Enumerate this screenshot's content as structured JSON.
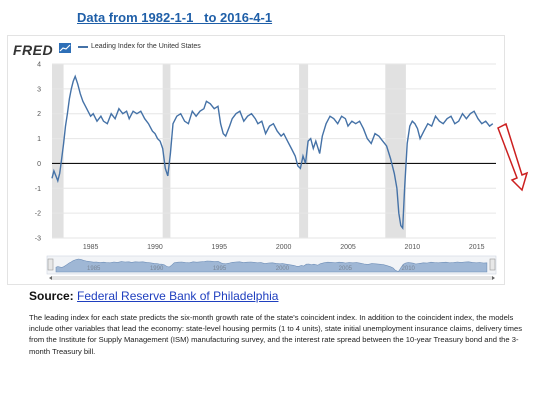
{
  "page_title": "Data from 1982-1-1   to 2016-4-1",
  "fred": {
    "logo_text": "FRED",
    "legend_label": "Leading Index for the United States",
    "series_color": "#4572a7",
    "recession_color": "#e1e1e1",
    "navigator_color": "#9fb7d5"
  },
  "source": {
    "label": "Source:",
    "link_text": "Federal Reserve Bank of Philadelphia"
  },
  "description": "The leading index for each state predicts the six-month growth rate of the state's coincident index. In addition to the coincident index, the models include other variables that lead the economy: state-level housing permits (1 to 4 units), state initial unemployment insurance claims, delivery times from the Institute for Supply Management (ISM) manufacturing survey, and the interest rate spread between the 10-year Treasury bond and the 3-month Treasury bill.",
  "arrow_color": "#cc2020",
  "chart_data": {
    "type": "line",
    "title": "Leading Index for the United States",
    "x_start": 1982.0,
    "x_end": 2016.25,
    "xlim": [
      1982.0,
      2016.5
    ],
    "ylim": [
      -3,
      4
    ],
    "yticks": [
      4,
      3,
      2,
      1,
      0,
      -1,
      -2,
      -3
    ],
    "xticks": [
      1985,
      1990,
      1995,
      2000,
      2005,
      2010,
      2015
    ],
    "navigator_ticks": [
      1985,
      1990,
      1995,
      2000,
      2005,
      2010
    ],
    "zero_line": true,
    "grid": true,
    "recessions": [
      [
        1982.0,
        1982.9
      ],
      [
        1990.6,
        1991.2
      ],
      [
        2001.2,
        2001.9
      ],
      [
        2007.9,
        2009.5
      ]
    ],
    "series": [
      {
        "x": [
          1982.0,
          1982.15,
          1982.3,
          1982.45,
          1982.6,
          1982.75,
          1982.9,
          1983.05,
          1983.2,
          1983.35,
          1983.5,
          1983.65,
          1983.8,
          1984.0,
          1984.2,
          1984.4,
          1984.6,
          1984.8,
          1985.0,
          1985.2,
          1985.5,
          1985.8,
          1986.0,
          1986.3,
          1986.6,
          1986.9,
          1987.2,
          1987.5,
          1987.8,
          1988.0,
          1988.3,
          1988.6,
          1988.9,
          1989.2,
          1989.5,
          1989.8,
          1990.0,
          1990.2,
          1990.4,
          1990.6,
          1990.8,
          1991.0,
          1991.2,
          1991.4,
          1991.7,
          1992.0,
          1992.3,
          1992.6,
          1992.9,
          1993.2,
          1993.5,
          1993.8,
          1994.0,
          1994.3,
          1994.6,
          1994.9,
          1995.1,
          1995.3,
          1995.5,
          1995.8,
          1996.0,
          1996.3,
          1996.6,
          1996.9,
          1997.2,
          1997.5,
          1997.8,
          1998.0,
          1998.3,
          1998.6,
          1998.9,
          1999.2,
          1999.5,
          1999.8,
          2000.0,
          2000.3,
          2000.6,
          2000.9,
          2001.1,
          2001.3,
          2001.5,
          2001.7,
          2001.9,
          2002.1,
          2002.3,
          2002.5,
          2002.8,
          2003.0,
          2003.3,
          2003.6,
          2003.9,
          2004.2,
          2004.5,
          2004.8,
          2005.0,
          2005.3,
          2005.6,
          2005.9,
          2006.2,
          2006.5,
          2006.8,
          2007.1,
          2007.4,
          2007.7,
          2008.0,
          2008.3,
          2008.6,
          2008.8,
          2008.95,
          2009.1,
          2009.25,
          2009.4,
          2009.6,
          2009.8,
          2010.0,
          2010.2,
          2010.4,
          2010.6,
          2010.9,
          2011.2,
          2011.5,
          2011.8,
          2012.1,
          2012.4,
          2012.7,
          2013.0,
          2013.3,
          2013.6,
          2013.9,
          2014.2,
          2014.5,
          2014.8,
          2015.1,
          2015.4,
          2015.7,
          2016.0,
          2016.25
        ],
        "values": [
          -0.6,
          -0.3,
          -0.5,
          -0.7,
          -0.4,
          0.2,
          0.8,
          1.5,
          2.0,
          2.6,
          3.0,
          3.3,
          3.5,
          3.2,
          2.8,
          2.5,
          2.3,
          2.1,
          1.9,
          2.0,
          1.7,
          1.9,
          1.7,
          1.6,
          2.0,
          1.8,
          2.2,
          2.0,
          2.1,
          1.8,
          2.1,
          2.0,
          2.1,
          1.8,
          1.6,
          1.3,
          1.2,
          1.0,
          0.9,
          0.6,
          -0.2,
          -0.5,
          0.4,
          1.6,
          1.9,
          2.0,
          1.7,
          1.6,
          2.1,
          1.9,
          2.1,
          2.2,
          2.5,
          2.4,
          2.2,
          2.3,
          1.6,
          1.2,
          1.1,
          1.5,
          1.8,
          2.0,
          2.1,
          1.7,
          1.9,
          2.0,
          1.8,
          1.6,
          1.7,
          1.2,
          1.5,
          1.6,
          1.3,
          1.1,
          1.2,
          0.9,
          0.6,
          0.3,
          -0.1,
          -0.2,
          0.3,
          0.0,
          0.9,
          1.0,
          0.6,
          0.9,
          0.4,
          1.1,
          1.6,
          1.9,
          1.8,
          1.6,
          1.9,
          1.8,
          1.5,
          1.7,
          1.6,
          1.7,
          1.4,
          1.0,
          0.8,
          1.2,
          1.1,
          0.9,
          0.7,
          0.2,
          -0.4,
          -1.0,
          -2.0,
          -2.5,
          -2.6,
          -1.0,
          0.8,
          1.5,
          1.7,
          1.6,
          1.4,
          1.0,
          1.3,
          1.6,
          1.5,
          1.9,
          1.7,
          1.6,
          1.8,
          1.9,
          1.6,
          1.7,
          2.0,
          1.8,
          2.0,
          2.1,
          1.8,
          1.6,
          1.7,
          1.5,
          1.6
        ]
      }
    ]
  }
}
